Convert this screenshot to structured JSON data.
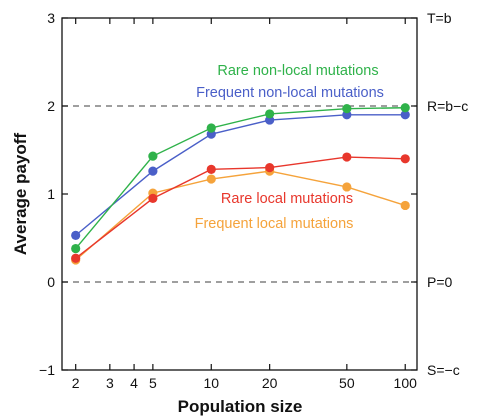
{
  "chart_data": {
    "type": "line",
    "xscale": "log",
    "xlabel": "Population size",
    "ylabel": "Average payoff",
    "xlim": [
      1.7,
      115
    ],
    "ylim": [
      -1,
      3
    ],
    "xticks": [
      2,
      3,
      4,
      5,
      10,
      20,
      50,
      100
    ],
    "yticks": [
      -1,
      0,
      1,
      2,
      3
    ],
    "grid": false,
    "reference_lines": [
      {
        "y": 3,
        "label": "T=b",
        "dashed": false
      },
      {
        "y": 2,
        "label": "R=b−c",
        "dashed": true
      },
      {
        "y": 0,
        "label": "P=0",
        "dashed": true
      },
      {
        "y": -1,
        "label": "S=−c",
        "dashed": false
      }
    ],
    "x": [
      2,
      5,
      10,
      20,
      50,
      100
    ],
    "series": [
      {
        "name": "Rare non-local mutations",
        "color": "#2fb24a",
        "values": [
          0.38,
          1.43,
          1.75,
          1.91,
          1.97,
          1.98
        ]
      },
      {
        "name": "Frequent non-local mutations",
        "color": "#4a5fc8",
        "values": [
          0.53,
          1.26,
          1.68,
          1.84,
          1.9,
          1.9
        ]
      },
      {
        "name": "Rare local mutations",
        "color": "#e8372c",
        "values": [
          0.27,
          0.95,
          1.28,
          1.3,
          1.42,
          1.4
        ]
      },
      {
        "name": "Frequent local mutations",
        "color": "#f5a33b",
        "values": [
          0.25,
          1.01,
          1.17,
          1.26,
          1.08,
          0.87
        ]
      }
    ]
  }
}
